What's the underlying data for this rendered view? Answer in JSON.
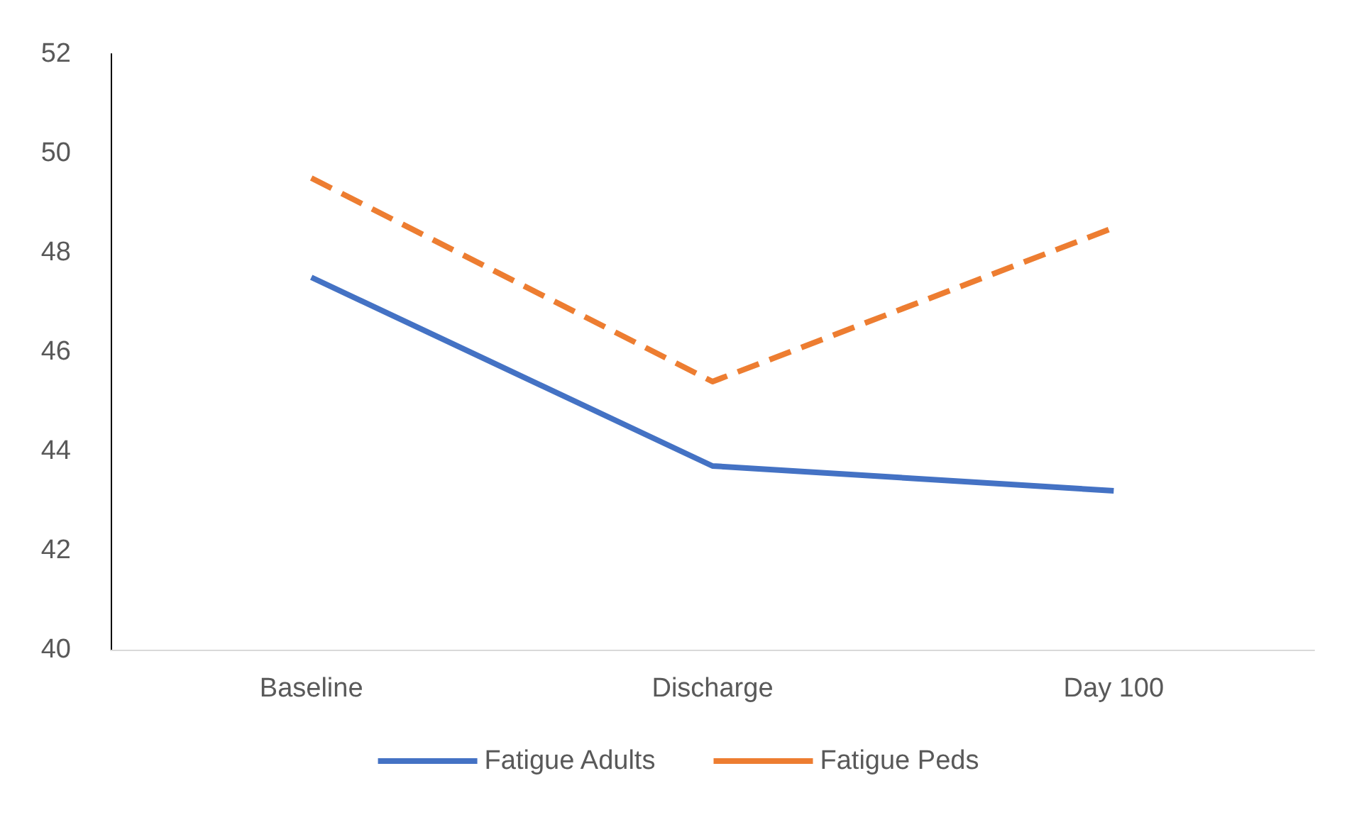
{
  "chart_data": {
    "type": "line",
    "categories": [
      "Baseline",
      "Discharge",
      "Day 100"
    ],
    "series": [
      {
        "name": "Fatigue Adults",
        "color": "#4472c4",
        "values": [
          47.5,
          43.7,
          43.2
        ],
        "line_style": "solid"
      },
      {
        "name": "Fatigue Peds",
        "color": "#ed7d31",
        "values": [
          49.5,
          45.4,
          48.5
        ],
        "line_style": "dashed"
      }
    ],
    "ylim": [
      40,
      52
    ],
    "yticks": [
      40,
      42,
      44,
      46,
      48,
      50,
      52
    ],
    "grid": false,
    "legend": "bottom",
    "marker": "none"
  }
}
